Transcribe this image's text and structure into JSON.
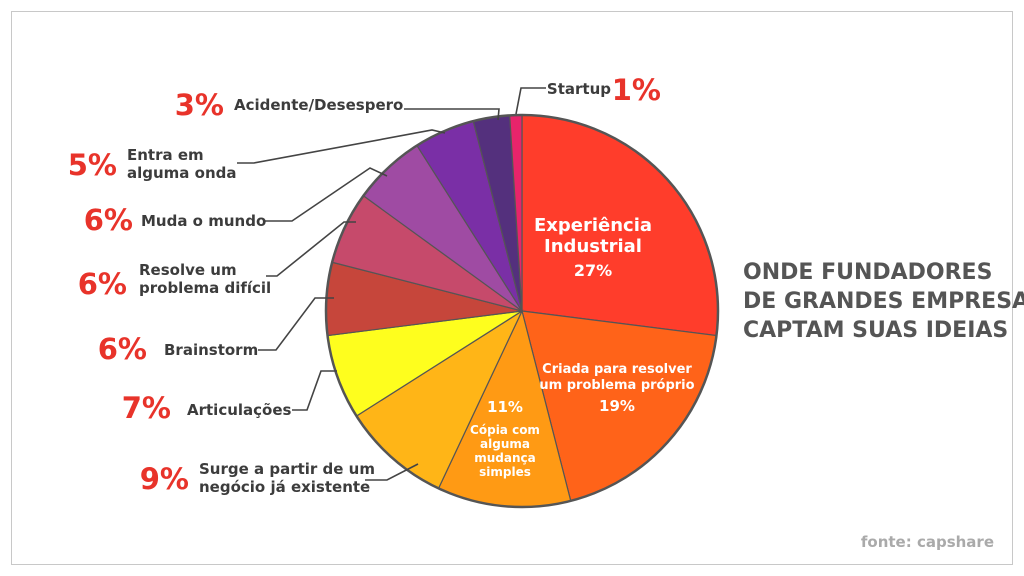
{
  "chart_data": {
    "type": "pie",
    "title": [
      "ONDE FUNDADORES",
      "DE GRANDES EMPRESAS",
      "CAPTAM SUAS IDEIAS"
    ],
    "source": "fonte: capshare",
    "slices": [
      {
        "label": [
          "Experiência",
          "Industrial"
        ],
        "value": 27,
        "value_text": "27%",
        "color": "#ff3d2b",
        "inside": true
      },
      {
        "label": [
          "Criada para resolver",
          "um problema próprio"
        ],
        "value": 19,
        "value_text": "19%",
        "color": "#ff6319",
        "inside": true
      },
      {
        "label": [
          "Cópia com",
          "alguma",
          "mudança",
          "simples"
        ],
        "value": 11,
        "value_text": "11%",
        "color": "#ff9a14",
        "inside": true
      },
      {
        "label": [
          "Surge a partir de um",
          "negócio já existente"
        ],
        "value": 9,
        "value_text": "9%",
        "color": "#ffb517",
        "inside": false
      },
      {
        "label": [
          "Articulações"
        ],
        "value": 7,
        "value_text": "7%",
        "color": "#fefe1e",
        "inside": false
      },
      {
        "label": [
          "Brainstorm"
        ],
        "value": 6,
        "value_text": "6%",
        "color": "#c6463b",
        "inside": false
      },
      {
        "label": [
          "Resolve um",
          "problema difícil"
        ],
        "value": 6,
        "value_text": "6%",
        "color": "#c64a6b",
        "inside": false
      },
      {
        "label": [
          "Muda o mundo"
        ],
        "value": 6,
        "value_text": "6%",
        "color": "#9f4ba3",
        "inside": false
      },
      {
        "label": [
          "Entra em",
          "alguma onda"
        ],
        "value": 5,
        "value_text": "5%",
        "color": "#7a2fa6",
        "inside": false
      },
      {
        "label": [
          "Acidente/Desespero"
        ],
        "value": 3,
        "value_text": "3%",
        "color": "#54307d",
        "inside": false
      },
      {
        "label": [
          "Startup"
        ],
        "value": 1,
        "value_text": "1%",
        "color": "#e8246b",
        "inside": false
      }
    ]
  }
}
